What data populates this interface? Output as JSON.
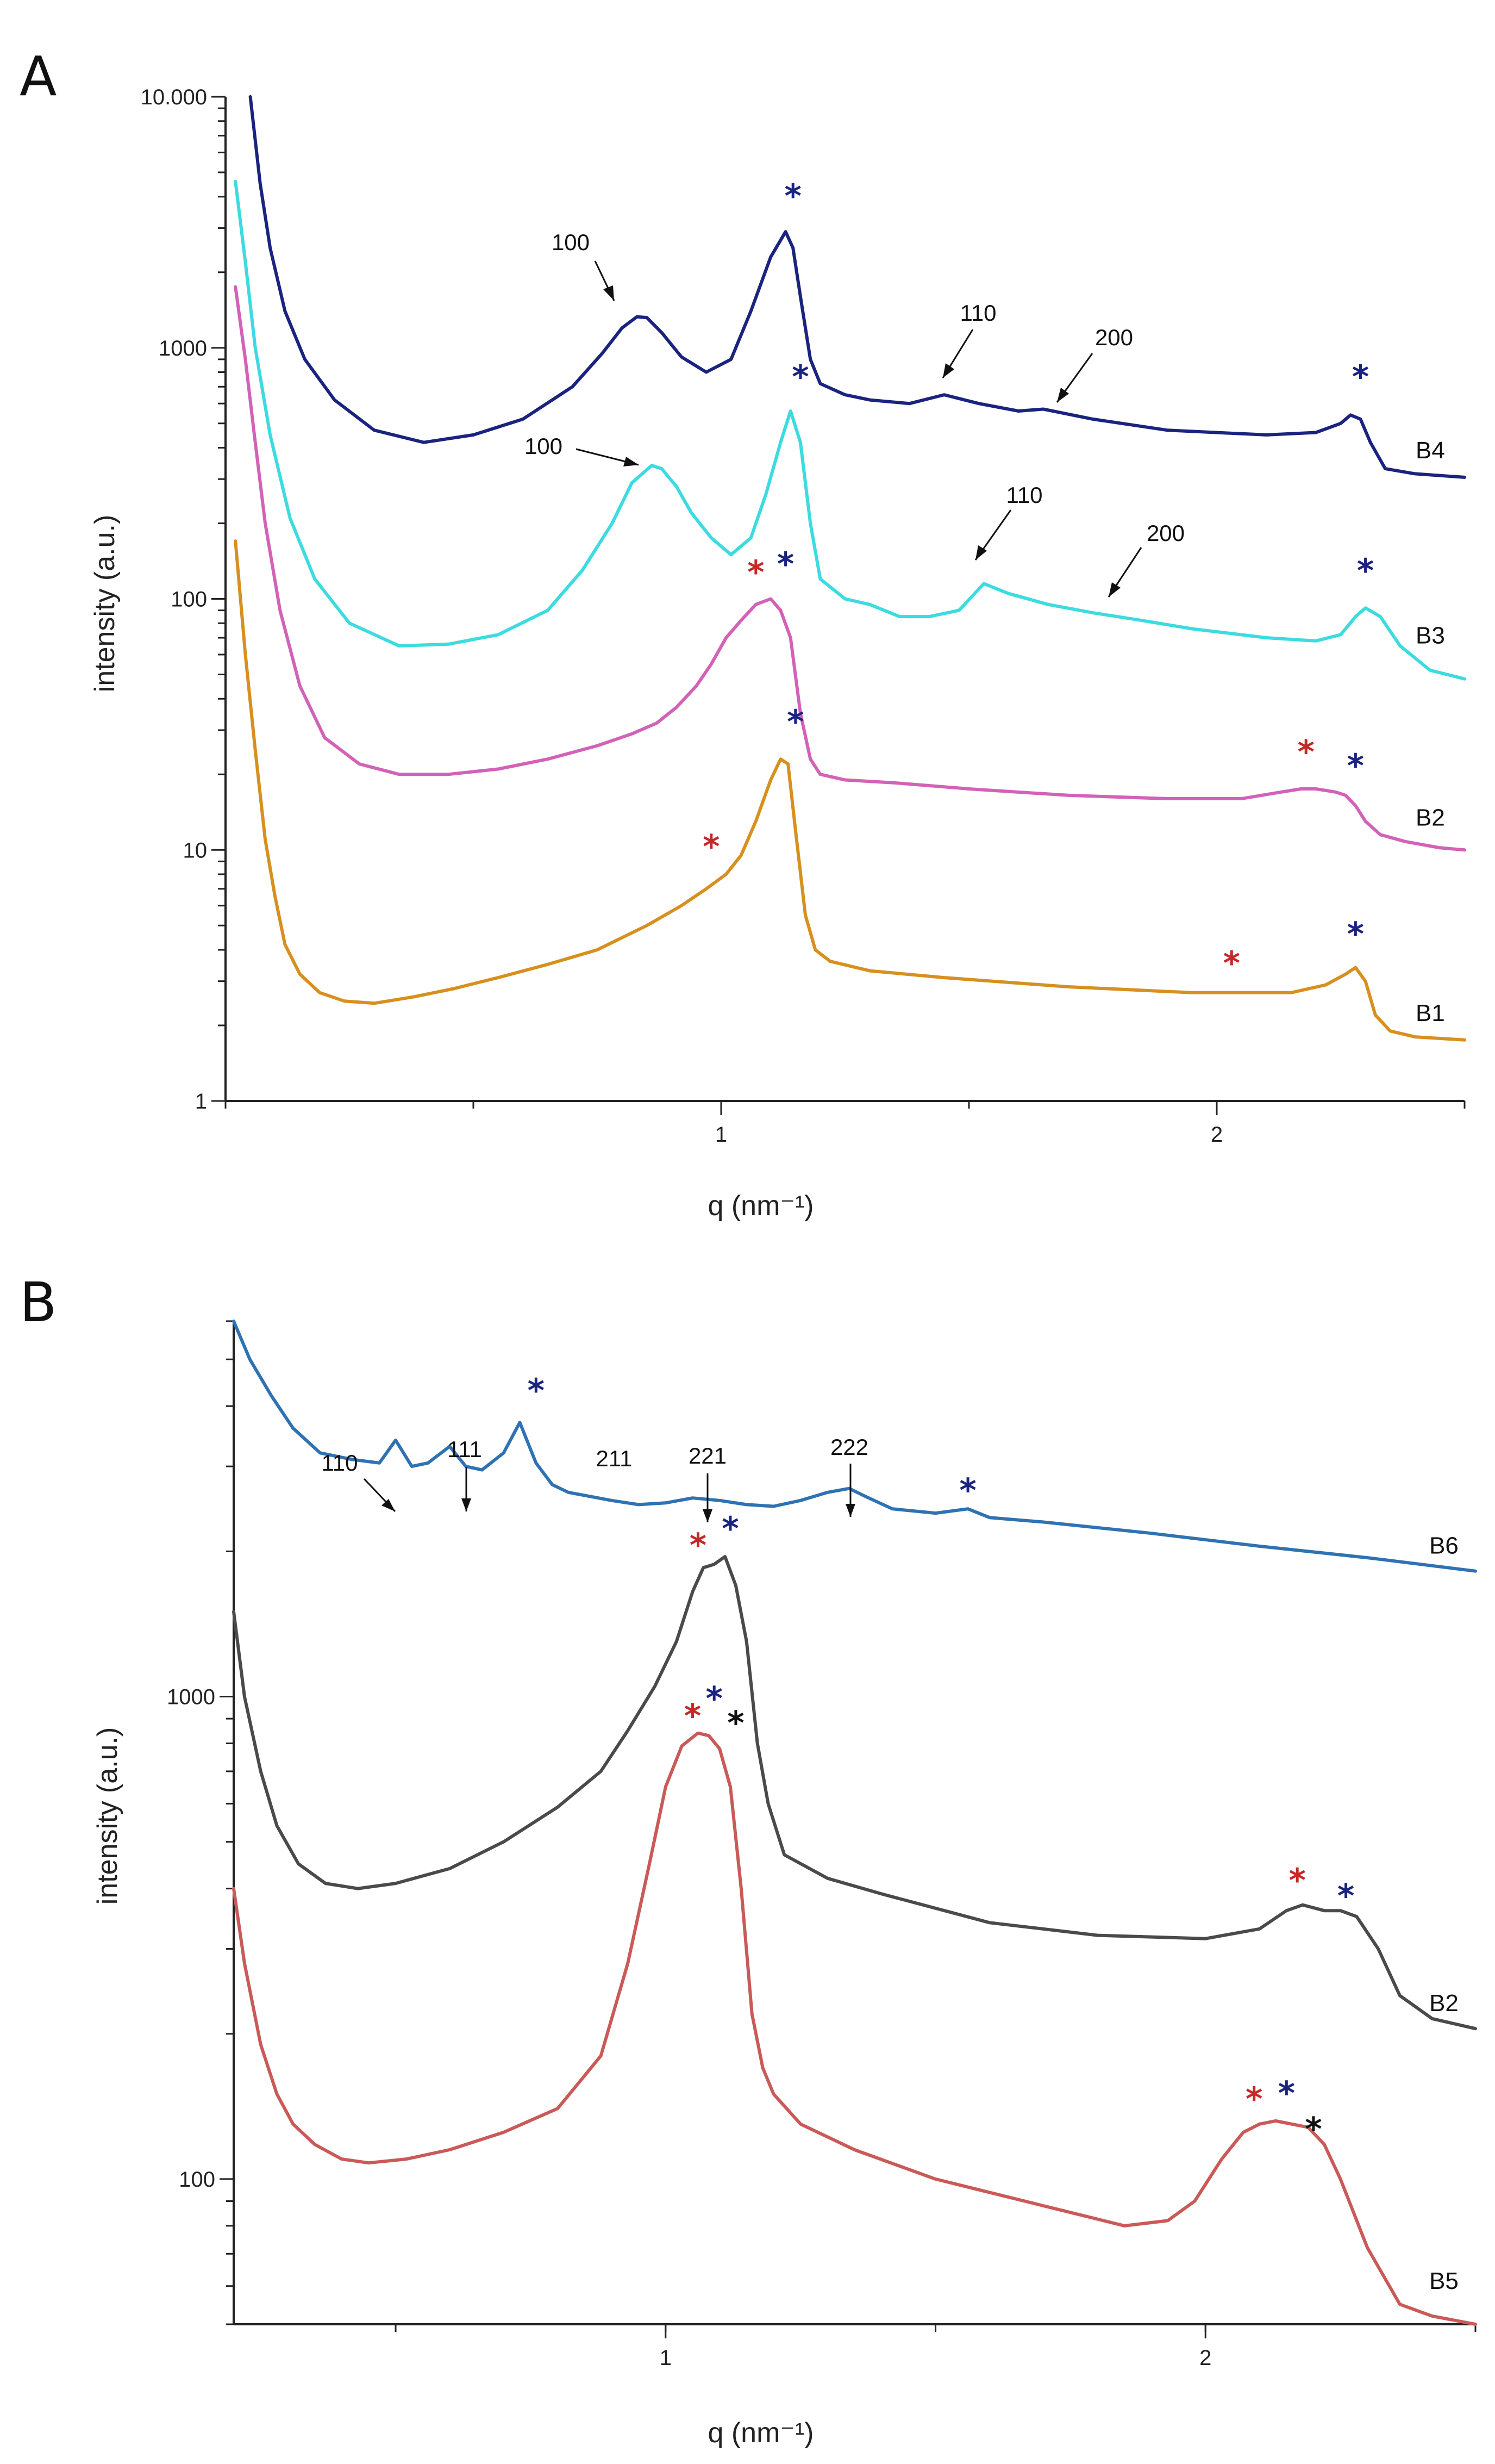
{
  "figure": {
    "panel_letters": [
      "A",
      "B"
    ]
  },
  "chart_data": [
    {
      "type": "line",
      "panel": "A",
      "xlabel": "q (nm⁻¹)",
      "ylabel": "intensity (a.u.)",
      "yscale": "log",
      "xlim": [
        0.0,
        2.5
      ],
      "ylim": [
        1,
        10000
      ],
      "xticks": [
        {
          "v": 1,
          "label": "1"
        },
        {
          "v": 2,
          "label": "2"
        }
      ],
      "yticks": [
        {
          "v": 1,
          "label": "1"
        },
        {
          "v": 10,
          "label": "10"
        },
        {
          "v": 100,
          "label": "100"
        },
        {
          "v": 1000,
          "label": "1000"
        },
        {
          "v": 10000,
          "label": "10.000"
        }
      ],
      "series": [
        {
          "name": "B4",
          "color": "#1a237e",
          "x": [
            0.05,
            0.07,
            0.09,
            0.12,
            0.16,
            0.22,
            0.3,
            0.4,
            0.5,
            0.6,
            0.7,
            0.76,
            0.8,
            0.83,
            0.85,
            0.88,
            0.92,
            0.97,
            1.02,
            1.06,
            1.1,
            1.13,
            1.145,
            1.16,
            1.18,
            1.2,
            1.25,
            1.3,
            1.38,
            1.45,
            1.52,
            1.6,
            1.65,
            1.75,
            1.9,
            2.1,
            2.2,
            2.25,
            2.27,
            2.29,
            2.31,
            2.34,
            2.4,
            2.5
          ],
          "y": [
            10000,
            4500,
            2500,
            1400,
            900,
            620,
            470,
            420,
            450,
            520,
            700,
            950,
            1200,
            1330,
            1320,
            1150,
            920,
            800,
            900,
            1400,
            2300,
            2900,
            2500,
            1600,
            900,
            720,
            650,
            620,
            600,
            650,
            600,
            560,
            570,
            520,
            470,
            450,
            460,
            500,
            540,
            520,
            420,
            330,
            315,
            305
          ]
        },
        {
          "name": "B3",
          "color": "#3cdbe0",
          "x": [
            0.02,
            0.04,
            0.06,
            0.09,
            0.13,
            0.18,
            0.25,
            0.35,
            0.45,
            0.55,
            0.65,
            0.72,
            0.78,
            0.82,
            0.86,
            0.88,
            0.91,
            0.94,
            0.98,
            1.02,
            1.06,
            1.09,
            1.12,
            1.14,
            1.16,
            1.18,
            1.2,
            1.25,
            1.3,
            1.36,
            1.42,
            1.48,
            1.53,
            1.58,
            1.66,
            1.75,
            1.85,
            1.95,
            2.1,
            2.2,
            2.25,
            2.28,
            2.3,
            2.33,
            2.37,
            2.43,
            2.5
          ],
          "y": [
            4600,
            2200,
            1000,
            450,
            210,
            120,
            80,
            65,
            66,
            72,
            90,
            130,
            200,
            290,
            340,
            330,
            280,
            220,
            175,
            150,
            175,
            260,
            420,
            560,
            420,
            200,
            120,
            100,
            95,
            85,
            85,
            90,
            115,
            105,
            95,
            88,
            82,
            76,
            70,
            68,
            72,
            85,
            92,
            85,
            65,
            52,
            48
          ]
        },
        {
          "name": "B2",
          "color": "#d262b8",
          "x": [
            0.02,
            0.04,
            0.06,
            0.08,
            0.11,
            0.15,
            0.2,
            0.27,
            0.35,
            0.45,
            0.55,
            0.65,
            0.75,
            0.82,
            0.87,
            0.91,
            0.95,
            0.98,
            1.01,
            1.04,
            1.07,
            1.1,
            1.12,
            1.14,
            1.16,
            1.18,
            1.2,
            1.25,
            1.35,
            1.5,
            1.7,
            1.9,
            2.05,
            2.13,
            2.17,
            2.2,
            2.24,
            2.26,
            2.28,
            2.3,
            2.33,
            2.38,
            2.45,
            2.5
          ],
          "y": [
            1750,
            900,
            420,
            200,
            90,
            45,
            28,
            22,
            20,
            20,
            21,
            23,
            26,
            29,
            32,
            37,
            45,
            55,
            70,
            82,
            95,
            100,
            90,
            70,
            35,
            23,
            20,
            19,
            18.5,
            17.5,
            16.5,
            16,
            16,
            17,
            17.5,
            17.5,
            17,
            16.5,
            15,
            13,
            11.5,
            10.8,
            10.2,
            10
          ]
        },
        {
          "name": "B1",
          "color": "#d7901f",
          "x": [
            0.02,
            0.04,
            0.06,
            0.08,
            0.1,
            0.12,
            0.15,
            0.19,
            0.24,
            0.3,
            0.38,
            0.46,
            0.55,
            0.65,
            0.75,
            0.85,
            0.92,
            0.97,
            1.01,
            1.04,
            1.07,
            1.1,
            1.12,
            1.135,
            1.15,
            1.17,
            1.19,
            1.22,
            1.3,
            1.45,
            1.7,
            1.95,
            2.15,
            2.22,
            2.26,
            2.28,
            2.3,
            2.32,
            2.35,
            2.4,
            2.5
          ],
          "y": [
            170,
            60,
            25,
            11,
            6.5,
            4.2,
            3.2,
            2.7,
            2.5,
            2.45,
            2.6,
            2.8,
            3.1,
            3.5,
            4,
            5,
            6,
            7,
            8,
            9.5,
            13,
            19,
            23,
            22,
            12,
            5.5,
            4.0,
            3.6,
            3.3,
            3.1,
            2.85,
            2.7,
            2.7,
            2.9,
            3.2,
            3.4,
            3.0,
            2.2,
            1.9,
            1.8,
            1.75
          ]
        }
      ],
      "annotations": [
        {
          "text": "100",
          "series": "B4"
        },
        {
          "text": "110",
          "series": "B4"
        },
        {
          "text": "200",
          "series": "B4"
        },
        {
          "text": "100",
          "series": "B3"
        },
        {
          "text": "110",
          "series": "B3"
        },
        {
          "text": "200",
          "series": "B3"
        }
      ],
      "markers": [
        {
          "symbol": "*",
          "color": "#1a237e",
          "x": 1.145,
          "y": 4100
        },
        {
          "symbol": "*",
          "color": "#1a237e",
          "x": 2.29,
          "y": 780
        },
        {
          "symbol": "*",
          "color": "#1a237e",
          "x": 1.16,
          "y": 780
        },
        {
          "symbol": "*",
          "color": "#1a237e",
          "x": 2.3,
          "y": 132
        },
        {
          "symbol": "*",
          "color": "#c62828",
          "x": 1.07,
          "y": 130
        },
        {
          "symbol": "*",
          "color": "#1a237e",
          "x": 1.13,
          "y": 140
        },
        {
          "symbol": "*",
          "color": "#c62828",
          "x": 2.18,
          "y": 25
        },
        {
          "symbol": "*",
          "color": "#1a237e",
          "x": 2.28,
          "y": 22
        },
        {
          "symbol": "*",
          "color": "#c62828",
          "x": 0.98,
          "y": 10.5
        },
        {
          "symbol": "*",
          "color": "#1a237e",
          "x": 1.15,
          "y": 33
        },
        {
          "symbol": "*",
          "color": "#c62828",
          "x": 2.03,
          "y": 3.6
        },
        {
          "symbol": "*",
          "color": "#1a237e",
          "x": 2.28,
          "y": 4.7
        }
      ]
    },
    {
      "type": "line",
      "panel": "B",
      "xlabel": "q (nm⁻¹)",
      "ylabel": "intensity (a.u.)",
      "yscale": "log",
      "xlim": [
        0.2,
        2.5
      ],
      "ylim": [
        50,
        6000
      ],
      "xticks": [
        {
          "v": 1,
          "label": "1"
        },
        {
          "v": 2,
          "label": "2"
        }
      ],
      "yticks": [
        {
          "v": 100,
          "label": "100"
        },
        {
          "v": 1000,
          "label": "1000"
        }
      ],
      "series": [
        {
          "name": "B6",
          "color": "#2f72b3",
          "x": [
            0.2,
            0.23,
            0.27,
            0.31,
            0.36,
            0.42,
            0.47,
            0.5,
            0.53,
            0.56,
            0.6,
            0.63,
            0.66,
            0.7,
            0.73,
            0.76,
            0.79,
            0.82,
            0.86,
            0.9,
            0.95,
            1.0,
            1.05,
            1.1,
            1.15,
            1.2,
            1.25,
            1.3,
            1.34,
            1.37,
            1.42,
            1.5,
            1.56,
            1.6,
            1.7,
            1.9,
            2.1,
            2.3,
            2.5
          ],
          "y": [
            6000,
            5000,
            4200,
            3600,
            3200,
            3100,
            3050,
            3400,
            3000,
            3050,
            3300,
            3000,
            2950,
            3200,
            3700,
            3050,
            2750,
            2650,
            2600,
            2550,
            2500,
            2520,
            2580,
            2550,
            2500,
            2480,
            2550,
            2650,
            2700,
            2600,
            2450,
            2400,
            2450,
            2350,
            2300,
            2180,
            2050,
            1940,
            1820
          ]
        },
        {
          "name": "B2",
          "color": "#4a4a4a",
          "x": [
            0.2,
            0.22,
            0.25,
            0.28,
            0.32,
            0.37,
            0.43,
            0.5,
            0.6,
            0.7,
            0.8,
            0.88,
            0.93,
            0.98,
            1.02,
            1.05,
            1.07,
            1.09,
            1.11,
            1.13,
            1.15,
            1.17,
            1.19,
            1.22,
            1.3,
            1.4,
            1.6,
            1.8,
            2.0,
            2.1,
            2.15,
            2.18,
            2.22,
            2.25,
            2.28,
            2.32,
            2.36,
            2.42,
            2.5
          ],
          "y": [
            1500,
            1000,
            700,
            540,
            450,
            410,
            400,
            410,
            440,
            500,
            590,
            700,
            850,
            1050,
            1300,
            1650,
            1850,
            1880,
            1950,
            1700,
            1300,
            800,
            600,
            470,
            420,
            390,
            340,
            320,
            315,
            330,
            360,
            370,
            360,
            360,
            350,
            300,
            240,
            215,
            205
          ]
        },
        {
          "name": "B5",
          "color": "#c95a58",
          "x": [
            0.2,
            0.22,
            0.25,
            0.28,
            0.31,
            0.35,
            0.4,
            0.45,
            0.52,
            0.6,
            0.7,
            0.8,
            0.88,
            0.93,
            0.97,
            1.0,
            1.03,
            1.06,
            1.08,
            1.1,
            1.12,
            1.14,
            1.16,
            1.18,
            1.2,
            1.25,
            1.35,
            1.5,
            1.7,
            1.85,
            1.93,
            1.98,
            2.03,
            2.07,
            2.1,
            2.13,
            2.16,
            2.19,
            2.22,
            2.25,
            2.3,
            2.36,
            2.42,
            2.5
          ],
          "y": [
            400,
            280,
            190,
            150,
            130,
            118,
            110,
            108,
            110,
            115,
            125,
            140,
            180,
            280,
            450,
            650,
            790,
            840,
            830,
            780,
            650,
            400,
            220,
            170,
            150,
            130,
            115,
            100,
            88,
            80,
            82,
            90,
            110,
            125,
            130,
            132,
            130,
            128,
            118,
            100,
            72,
            55,
            52,
            50
          ]
        }
      ],
      "annotations": [
        {
          "text": "110",
          "series": "B6"
        },
        {
          "text": "111",
          "series": "B6"
        },
        {
          "text": "211",
          "series": "B6"
        },
        {
          "text": "221",
          "series": "B6"
        },
        {
          "text": "222",
          "series": "B6"
        }
      ],
      "markers": [
        {
          "symbol": "*",
          "color": "#1a237e",
          "x": 0.76,
          "y": 4350
        },
        {
          "symbol": "*",
          "color": "#1a237e",
          "x": 1.56,
          "y": 2700
        },
        {
          "symbol": "*",
          "color": "#c62828",
          "x": 1.06,
          "y": 2080
        },
        {
          "symbol": "*",
          "color": "#1a237e",
          "x": 1.12,
          "y": 2250
        },
        {
          "symbol": "*",
          "color": "#c62828",
          "x": 1.05,
          "y": 920
        },
        {
          "symbol": "*",
          "color": "#1a237e",
          "x": 1.09,
          "y": 1000
        },
        {
          "symbol": "*",
          "color": "#111111",
          "x": 1.13,
          "y": 890
        },
        {
          "symbol": "*",
          "color": "#c62828",
          "x": 2.17,
          "y": 420
        },
        {
          "symbol": "*",
          "color": "#1a237e",
          "x": 2.26,
          "y": 390
        },
        {
          "symbol": "*",
          "color": "#c62828",
          "x": 2.09,
          "y": 148
        },
        {
          "symbol": "*",
          "color": "#1a237e",
          "x": 2.15,
          "y": 152
        },
        {
          "symbol": "*",
          "color": "#111111",
          "x": 2.2,
          "y": 128
        }
      ]
    }
  ]
}
